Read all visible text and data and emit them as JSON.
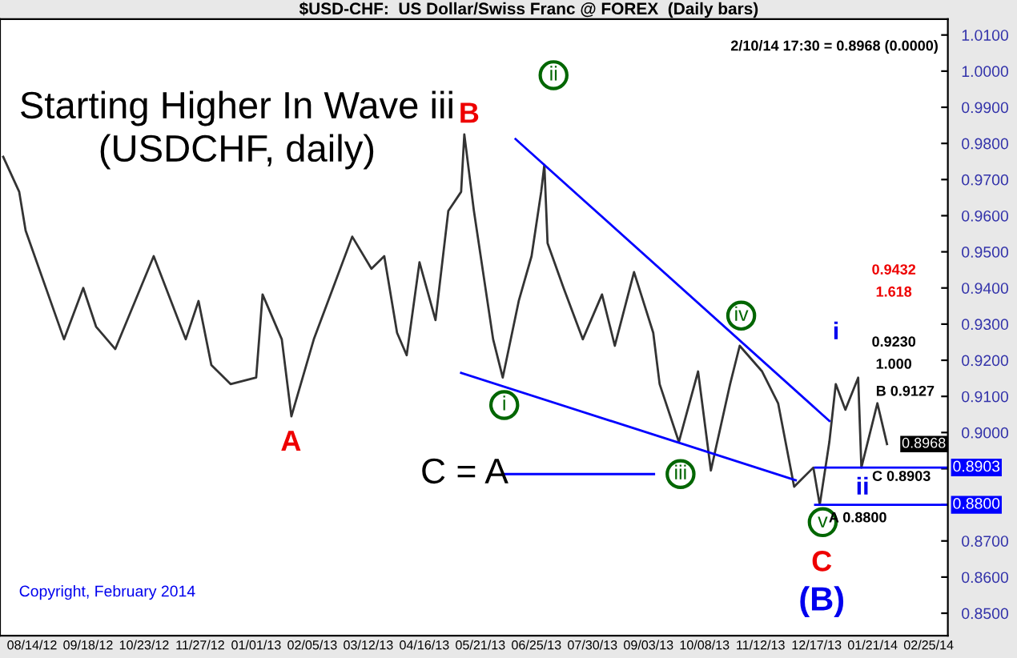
{
  "chart_data": {
    "type": "line",
    "title": "Starting Higher In Wave iii",
    "subtitle": "(USDCHF, daily)",
    "series": [
      {
        "color": "#333333",
        "x": [
          "2012-07-27",
          "2012-08-06",
          "2012-08-10",
          "2012-09-03",
          "2012-09-15",
          "2012-09-23",
          "2012-10-05",
          "2012-10-29",
          "2012-11-18",
          "2012-11-26",
          "2012-12-04",
          "2012-12-16",
          "2013-01-01",
          "2013-01-05",
          "2013-01-17",
          "2013-01-23",
          "2013-02-06",
          "2013-02-18",
          "2013-03-02",
          "2013-03-14",
          "2013-03-22",
          "2013-03-30",
          "2013-04-05",
          "2013-04-13",
          "2013-04-23",
          "2013-05-01",
          "2013-05-09",
          "2013-05-11",
          "2013-05-17",
          "2013-05-29",
          "2013-06-04",
          "2013-06-14",
          "2013-06-22",
          "2013-06-28",
          "2013-06-30",
          "2013-07-02",
          "2013-07-12",
          "2013-07-24",
          "2013-08-05",
          "2013-08-13",
          "2013-08-25",
          "2013-09-06",
          "2013-09-10",
          "2013-09-22",
          "2013-10-04",
          "2013-10-12",
          "2013-10-24",
          "2013-10-30",
          "2013-11-13",
          "2013-11-23",
          "2013-12-03",
          "2013-12-15",
          "2013-12-19",
          "2013-12-25",
          "2013-12-29",
          "2014-01-04",
          "2014-01-12",
          "2014-01-14",
          "2014-01-24",
          "2014-01-30"
        ],
        "values": [
          0.9763,
          0.9666,
          0.9559,
          0.9258,
          0.94,
          0.9293,
          0.9231,
          0.9488,
          0.9258,
          0.9364,
          0.9187,
          0.9134,
          0.9152,
          0.9382,
          0.9258,
          0.9045,
          0.9258,
          0.94,
          0.9542,
          0.9453,
          0.9488,
          0.9276,
          0.9214,
          0.9471,
          0.9311,
          0.9613,
          0.9666,
          0.9825,
          0.9613,
          0.9258,
          0.9152,
          0.9364,
          0.9488,
          0.9666,
          0.9741,
          0.9524,
          0.94,
          0.9258,
          0.9382,
          0.924,
          0.9444,
          0.9276,
          0.9134,
          0.8974,
          0.9169,
          0.8895,
          0.9134,
          0.924,
          0.9169,
          0.9081,
          0.885,
          0.8903,
          0.88,
          0.8974,
          0.9134,
          0.9063,
          0.9152,
          0.8903,
          0.9081,
          0.8968
        ]
      },
      {
        "type": "line",
        "color": "#0000ff",
        "x": [
          "2013-06-12",
          "2013-12-25"
        ],
        "values": [
          0.9812,
          0.9032
        ]
      },
      {
        "type": "line",
        "color": "#0000ff",
        "x": [
          "2013-05-09",
          "2013-12-04"
        ],
        "values": [
          0.9165,
          0.8868
        ]
      }
    ],
    "xlim": [
      "2012-07-25",
      "2014-03-09"
    ],
    "xticks": [
      {
        "value": "2012-08-14",
        "label": "08/14/12"
      },
      {
        "value": "2012-09-18",
        "label": "09/18/12"
      },
      {
        "value": "2012-10-23",
        "label": "10/23/12"
      },
      {
        "value": "2012-11-27",
        "label": "11/27/12"
      },
      {
        "value": "2013-01-01",
        "label": "01/01/13"
      },
      {
        "value": "2013-02-05",
        "label": "02/05/13"
      },
      {
        "value": "2013-03-12",
        "label": "03/12/13"
      },
      {
        "value": "2013-04-16",
        "label": "04/16/13"
      },
      {
        "value": "2013-05-21",
        "label": "05/21/13"
      },
      {
        "value": "2013-06-25",
        "label": "06/25/13"
      },
      {
        "value": "2013-07-30",
        "label": "07/30/13"
      },
      {
        "value": "2013-09-03",
        "label": "09/03/13"
      },
      {
        "value": "2013-10-08",
        "label": "10/08/13"
      },
      {
        "value": "2013-11-12",
        "label": "11/12/13"
      },
      {
        "value": "2013-12-17",
        "label": "12/17/13"
      },
      {
        "value": "2014-01-21",
        "label": "01/21/14"
      },
      {
        "value": "2014-02-25",
        "label": "02/25/14"
      }
    ],
    "ylim": [
      0.8438,
      1.0144
    ],
    "yticks": [
      {
        "value": 0.85,
        "label": "0.8500"
      },
      {
        "value": 0.86,
        "label": "0.8600"
      },
      {
        "value": 0.87,
        "label": "0.8700"
      },
      {
        "value": 0.88,
        "label": null
      },
      {
        "value": 0.89,
        "label": null
      },
      {
        "value": 0.9,
        "label": "0.9000"
      },
      {
        "value": 0.91,
        "label": "0.9100"
      },
      {
        "value": 0.92,
        "label": "0.9200"
      },
      {
        "value": 0.93,
        "label": "0.9300"
      },
      {
        "value": 0.94,
        "label": "0.9400"
      },
      {
        "value": 0.95,
        "label": "0.9500"
      },
      {
        "value": 0.96,
        "label": "0.9600"
      },
      {
        "value": 0.97,
        "label": "0.9700"
      },
      {
        "value": 0.98,
        "label": "0.9800"
      },
      {
        "value": 0.99,
        "label": "0.9900"
      },
      {
        "value": 1.0,
        "label": "1.0000"
      },
      {
        "value": 1.01,
        "label": "1.0100"
      }
    ],
    "ref_lines": [
      {
        "axis": "y",
        "value": 0.8903,
        "label": "0.8903",
        "color": "#0000ff"
      },
      {
        "axis": "y",
        "value": 0.88,
        "label": "0.8800",
        "color": "#0000ff"
      }
    ],
    "annotations": [
      "$USD-CHF:  US Dollar/Swiss Franc @ FOREX  (Daily bars)",
      "2/10/14 17:30 = 0.8968 (0.0000)",
      "Copyright, February 2014",
      "0.8968",
      "A",
      "B",
      "C",
      "(B)",
      "i",
      "ii",
      "iii",
      "iv",
      "v",
      "i",
      "ii",
      "C = A",
      "0.9432",
      "1.618",
      "0.9230",
      "1.000",
      "B 0.9127",
      "C 0.8903",
      "A 0.8800"
    ]
  }
}
